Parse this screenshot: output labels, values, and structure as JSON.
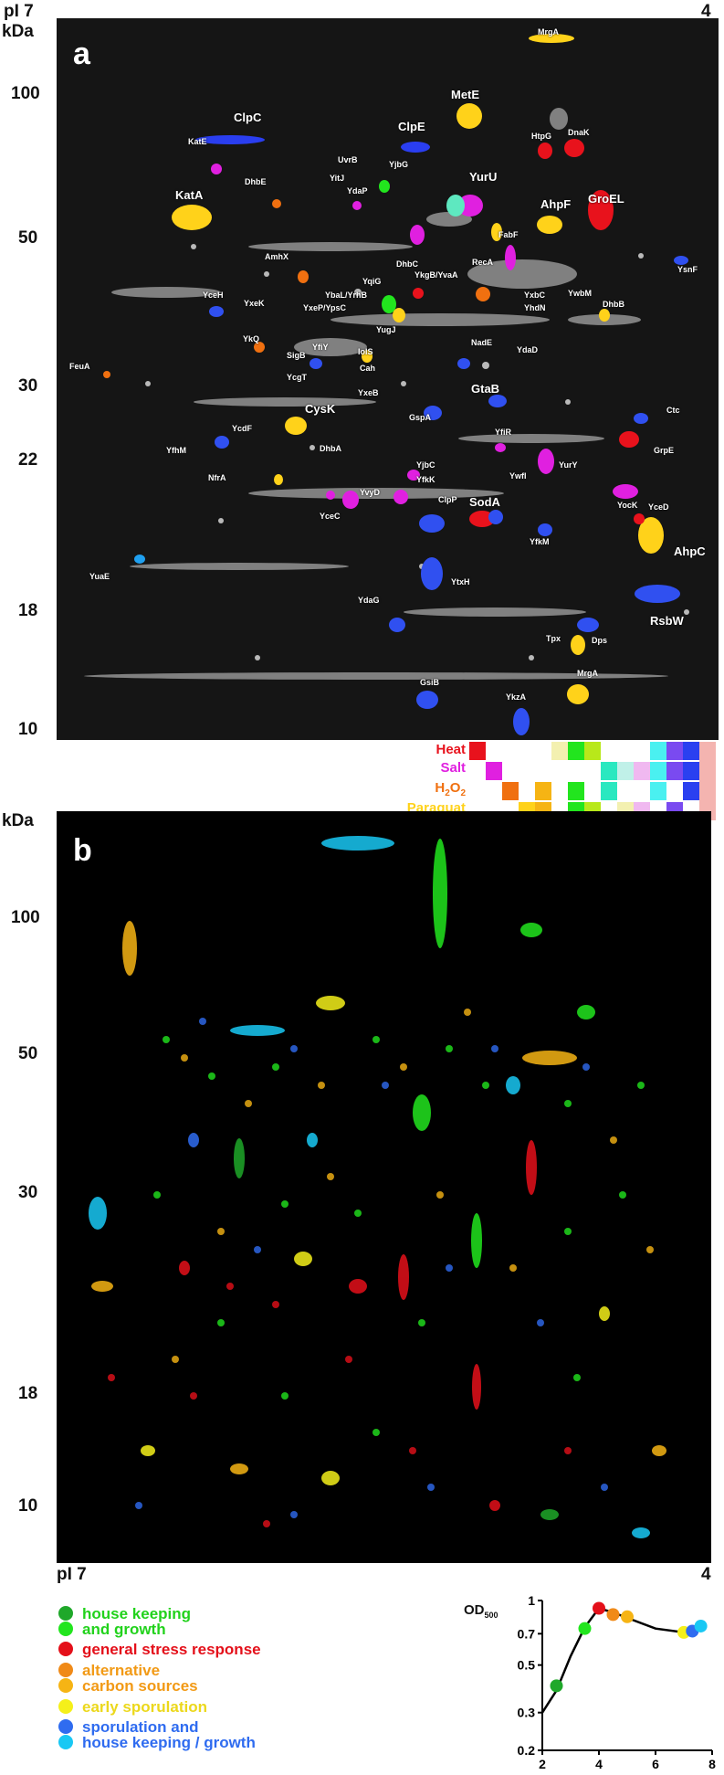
{
  "panel_a": {
    "letter": "a",
    "pi_left": "pI 7",
    "pi_right": "4",
    "kda_label": "kDa",
    "mw_ticks": [
      "100",
      "50",
      "30",
      "22",
      "18",
      "10"
    ],
    "big_spots": [
      "ClpC",
      "ClpE",
      "MetE",
      "KatA",
      "YurU",
      "AhpF",
      "GroEL",
      "CysK",
      "GtaB",
      "SodA",
      "AhpC",
      "RsbW"
    ],
    "small_spots": [
      "MrgA",
      "KatE",
      "HtpG",
      "DnaK",
      "UvrB",
      "YjbG",
      "YitJ",
      "YdaP",
      "DhbE",
      "FabF",
      "YsnF",
      "AmhX",
      "YqiG",
      "DhbC",
      "YkgB/YvaA",
      "RecA",
      "YxbC",
      "YwbM",
      "YceH",
      "YbaL/YrhB",
      "YhdN",
      "DhbB",
      "YxeK",
      "YxeP/YpsC",
      "YugJ",
      "YkQ",
      "SigB",
      "YfiY",
      "IolS",
      "NadE",
      "YdaD",
      "FeuA",
      "YcgT",
      "Cah",
      "YxeB",
      "Ctc",
      "GspA",
      "YcdF",
      "YfiR",
      "GrpE",
      "YfhM",
      "DhbA",
      "YjbC",
      "YwfI",
      "YurY",
      "NfrA",
      "YfkK",
      "YocK",
      "YceD",
      "YvyD",
      "YceC",
      "ClpP",
      "YfkM",
      "YuaE",
      "YtxH",
      "YdaG",
      "Tpx",
      "Dps",
      "MrgA",
      "GsiB",
      "YkzA"
    ]
  },
  "stress_key": {
    "labels": [
      "Heat",
      "Salt",
      "H2O2",
      "Paraquat"
    ],
    "colors": [
      "#e8121c",
      "#e020e0",
      "#f07010",
      "#ffd21a"
    ]
  },
  "panel_b": {
    "letter": "b",
    "kda_label": "kDa",
    "mw_ticks": [
      "100",
      "50",
      "30",
      "18",
      "10"
    ],
    "pi_left": "pI 7",
    "pi_right": "4"
  },
  "legend": {
    "items": [
      {
        "lines": [
          "house keeping",
          "and growth"
        ],
        "dot_colors": [
          "#1fa82a",
          "#22e51e"
        ],
        "text_color": "#22d21c"
      },
      {
        "lines": [
          "general stress response"
        ],
        "dot_colors": [
          "#e4101a"
        ],
        "text_color": "#e4101a"
      },
      {
        "lines": [
          "alternative",
          "carbon sources"
        ],
        "dot_colors": [
          "#f08a18",
          "#f6b414"
        ],
        "text_color": "#f29a16"
      },
      {
        "lines": [
          "early sporulation"
        ],
        "dot_colors": [
          "#f5f01a"
        ],
        "text_color": "#ecd81c"
      },
      {
        "lines": [
          "sporulation and",
          "house keeping / growth"
        ],
        "dot_colors": [
          "#2f6cf0",
          "#19c8f4"
        ],
        "text_color": "#2f6cf0"
      }
    ]
  },
  "chart_data": {
    "type": "line",
    "ylabel": "OD500",
    "yscale": "log",
    "ylim": [
      0.2,
      1
    ],
    "xlim": [
      2,
      8
    ],
    "x_ticks": [
      "2",
      "4",
      "6",
      "8"
    ],
    "y_ticks": [
      "1",
      "0.7",
      "0.5",
      "0.3",
      "0.2"
    ],
    "curve": [
      [
        2.0,
        0.3
      ],
      [
        2.5,
        0.38
      ],
      [
        3.0,
        0.55
      ],
      [
        3.5,
        0.75
      ],
      [
        4.0,
        0.92
      ],
      [
        4.5,
        0.88
      ],
      [
        5.0,
        0.83
      ],
      [
        6.0,
        0.74
      ],
      [
        7.0,
        0.71
      ],
      [
        7.6,
        0.75
      ]
    ],
    "points": [
      {
        "x": 2.5,
        "y": 0.4,
        "color": "#1fa82a"
      },
      {
        "x": 3.5,
        "y": 0.74,
        "color": "#22e51e"
      },
      {
        "x": 4.0,
        "y": 0.92,
        "color": "#e4101a"
      },
      {
        "x": 4.5,
        "y": 0.86,
        "color": "#f08a18"
      },
      {
        "x": 5.0,
        "y": 0.84,
        "color": "#f6b414"
      },
      {
        "x": 7.0,
        "y": 0.71,
        "color": "#f5f01a"
      },
      {
        "x": 7.3,
        "y": 0.72,
        "color": "#2f6cf0"
      },
      {
        "x": 7.6,
        "y": 0.76,
        "color": "#19c8f4"
      }
    ]
  }
}
